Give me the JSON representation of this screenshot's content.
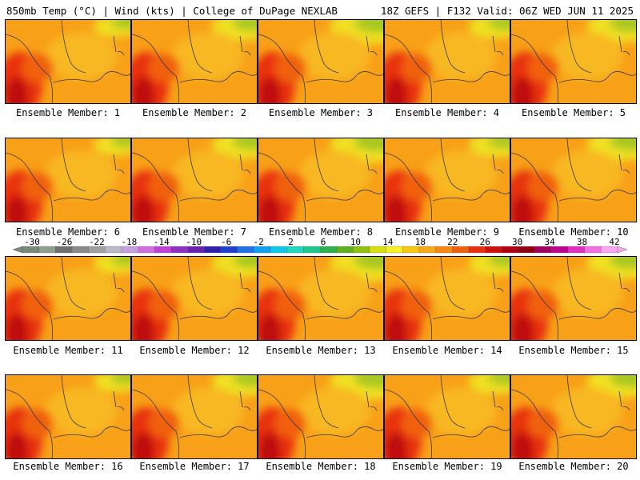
{
  "header": {
    "left": "850mb Temp (°C) | Wind (kts) | College of DuPage NEXLAB",
    "right": "18Z GEFS | F132 Valid: 06Z WED JUN 11 2025"
  },
  "panels": [
    {
      "label": "Ensemble Member: 1"
    },
    {
      "label": "Ensemble Member: 2"
    },
    {
      "label": "Ensemble Member: 3"
    },
    {
      "label": "Ensemble Member: 4"
    },
    {
      "label": "Ensemble Member: 5"
    },
    {
      "label": "Ensemble Member: 6"
    },
    {
      "label": "Ensemble Member: 7"
    },
    {
      "label": "Ensemble Member: 8"
    },
    {
      "label": "Ensemble Member: 9"
    },
    {
      "label": "Ensemble Member: 10"
    },
    {
      "label": "Ensemble Member: 11"
    },
    {
      "label": "Ensemble Member: 12"
    },
    {
      "label": "Ensemble Member: 13"
    },
    {
      "label": "Ensemble Member: 14"
    },
    {
      "label": "Ensemble Member: 15"
    },
    {
      "label": "Ensemble Member: 16"
    },
    {
      "label": "Ensemble Member: 17"
    },
    {
      "label": "Ensemble Member: 18"
    },
    {
      "label": "Ensemble Member: 19"
    },
    {
      "label": "Ensemble Member: 20"
    }
  ],
  "colorbar": {
    "ticks": [
      "-30",
      "-26",
      "-22",
      "-18",
      "-14",
      "-10",
      "-6",
      "-2",
      "2",
      "6",
      "10",
      "14",
      "18",
      "22",
      "26",
      "30",
      "34",
      "38",
      "42"
    ],
    "colors": [
      "#7a8a7a",
      "#8f9f8f",
      "#707070",
      "#8a8a8a",
      "#a0a0a0",
      "#b8b8c8",
      "#c8a0e0",
      "#d070e0",
      "#c040d8",
      "#9030c0",
      "#6a20b0",
      "#3020b0",
      "#2040d0",
      "#2070e8",
      "#10a0f0",
      "#10c8e8",
      "#20d8c0",
      "#20c890",
      "#30b050",
      "#60b020",
      "#90c010",
      "#d8e010",
      "#f8f020",
      "#f8c810",
      "#f8a818",
      "#f88810",
      "#f06010",
      "#e83010",
      "#d01010",
      "#b00010",
      "#900010",
      "#a00060",
      "#c00090",
      "#e030c0",
      "#f070e0",
      "#f8a8f0"
    ]
  }
}
